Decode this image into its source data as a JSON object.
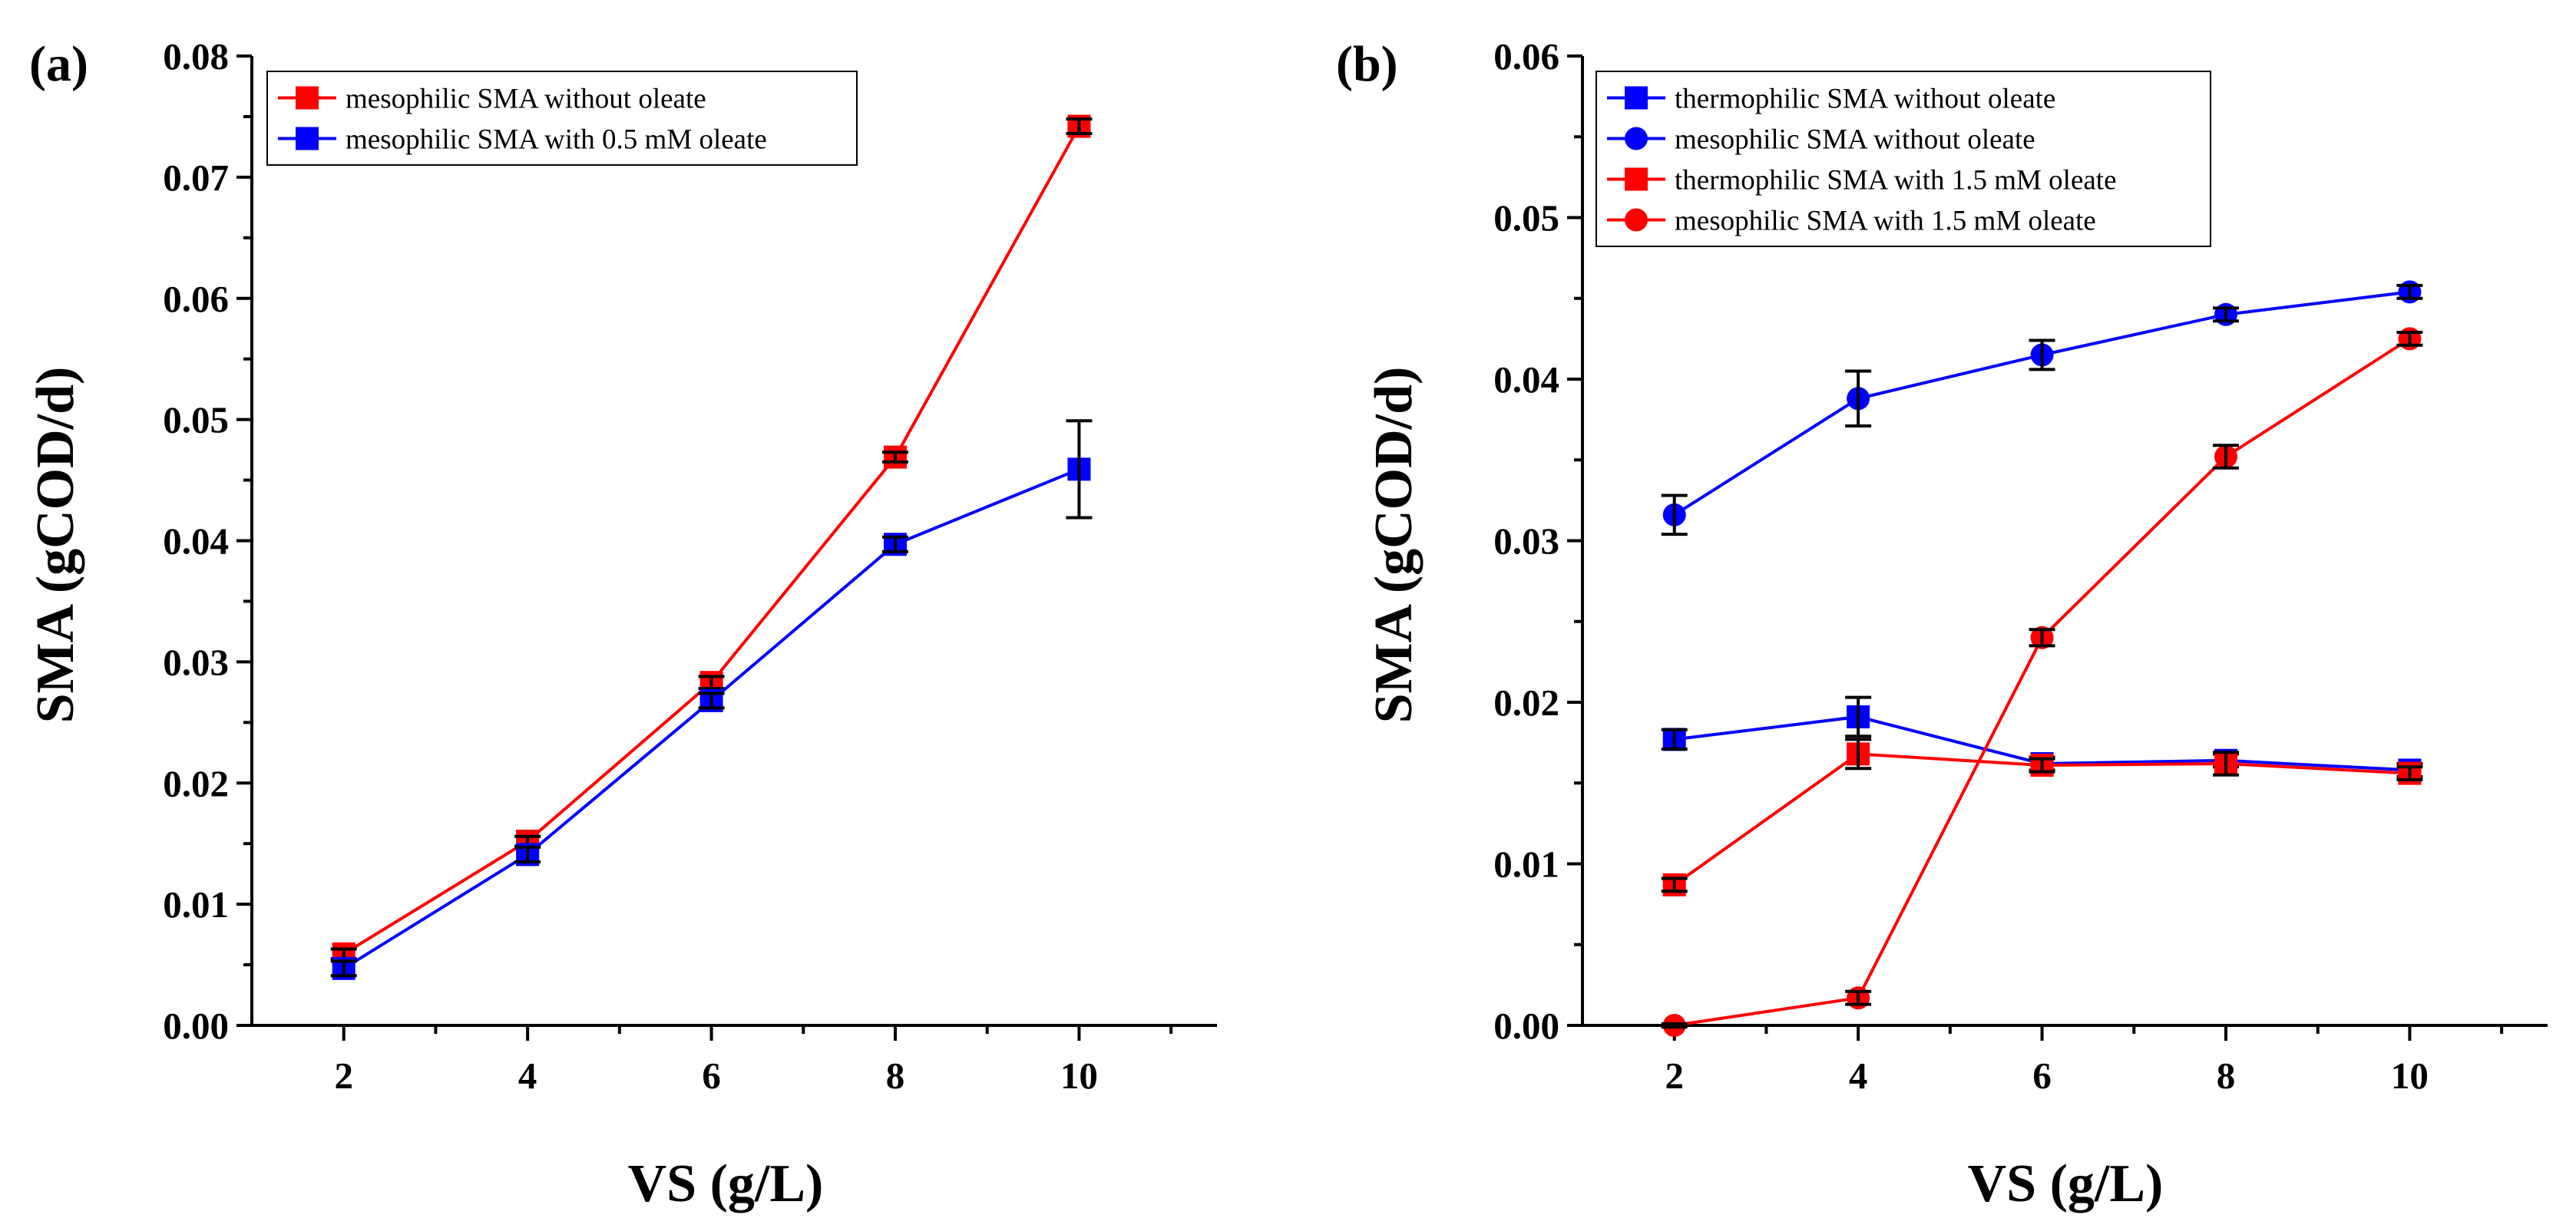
{
  "colors": {
    "red": "#ff0000",
    "blue": "#0000ff",
    "error_bar": "#000000"
  },
  "chart_data": [
    {
      "type": "line",
      "panel_label": "(a)",
      "xlabel": "VS (g/L)",
      "ylabel": "SMA (gCOD/d)",
      "x": [
        2,
        4,
        6,
        8,
        10
      ],
      "xlim": [
        1,
        11.5
      ],
      "ylim": [
        0,
        0.08
      ],
      "xticks": [
        2,
        4,
        6,
        8,
        10
      ],
      "xtick_labels": [
        "2",
        "4",
        "6",
        "8",
        "10"
      ],
      "yticks": [
        0,
        0.01,
        0.02,
        0.03,
        0.04,
        0.05,
        0.06,
        0.07,
        0.08
      ],
      "ytick_labels": [
        "0.00",
        "0.01",
        "0.02",
        "0.03",
        "0.04",
        "0.05",
        "0.06",
        "0.07",
        "0.08"
      ],
      "legend_position": "top-left",
      "series": [
        {
          "name": "mesophilic SMA without oleate",
          "color": "red",
          "marker": "square",
          "values": [
            0.0059,
            0.0152,
            0.0283,
            0.0469,
            0.0742
          ],
          "errors": [
            0.0004,
            0.0004,
            0.0005,
            0.0004,
            0.0006
          ]
        },
        {
          "name": "mesophilic SMA with 0.5 mM oleate",
          "color": "blue",
          "marker": "square",
          "values": [
            0.0047,
            0.0141,
            0.0268,
            0.0397,
            0.0459
          ],
          "errors": [
            0.0006,
            0.0006,
            0.0006,
            0.0006,
            0.004
          ]
        }
      ]
    },
    {
      "type": "line",
      "panel_label": "(b)",
      "xlabel": "VS (g/L)",
      "ylabel": "SMA (gCOD/d)",
      "x": [
        2,
        4,
        6,
        8,
        10
      ],
      "xlim": [
        1,
        11.5
      ],
      "ylim": [
        0,
        0.06
      ],
      "xticks": [
        2,
        4,
        6,
        8,
        10
      ],
      "xtick_labels": [
        "2",
        "4",
        "6",
        "8",
        "10"
      ],
      "yticks": [
        0,
        0.01,
        0.02,
        0.03,
        0.04,
        0.05,
        0.06
      ],
      "ytick_labels": [
        "0.00",
        "0.01",
        "0.02",
        "0.03",
        "0.04",
        "0.05",
        "0.06"
      ],
      "legend_position": "top-left",
      "series": [
        {
          "name": "thermophilic SMA without oleate",
          "color": "blue",
          "marker": "square",
          "values": [
            0.0177,
            0.0191,
            0.0162,
            0.0164,
            0.0158
          ],
          "errors": [
            0.0006,
            0.0012,
            0.0004,
            0.0004,
            0.0004
          ]
        },
        {
          "name": "mesophilic SMA without oleate",
          "color": "blue",
          "marker": "circle",
          "values": [
            0.0316,
            0.0388,
            0.0415,
            0.044,
            0.0454
          ],
          "errors": [
            0.0012,
            0.0017,
            0.0009,
            0.0004,
            0.0004
          ]
        },
        {
          "name": "thermophilic SMA with 1.5 mM oleate",
          "color": "red",
          "marker": "square",
          "values": [
            0.0087,
            0.0168,
            0.0161,
            0.0162,
            0.0156
          ],
          "errors": [
            0.0004,
            0.0009,
            0.0004,
            0.0007,
            0.0004
          ]
        },
        {
          "name": "mesophilic SMA with 1.5 mM oleate",
          "color": "red",
          "marker": "circle",
          "values": [
            0.0,
            0.0017,
            0.024,
            0.0352,
            0.0425
          ],
          "errors": [
            0.0001,
            0.0004,
            0.0005,
            0.0007,
            0.0004
          ]
        }
      ]
    }
  ]
}
